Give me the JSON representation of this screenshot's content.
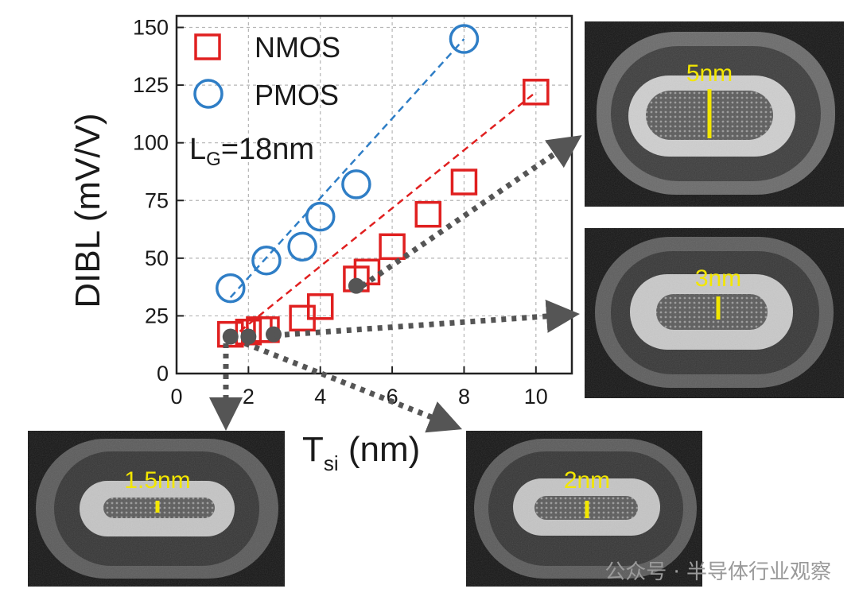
{
  "chart_data": {
    "type": "scatter",
    "xlabel_main": "T",
    "xlabel_sub": "si",
    "xlabel_unit": " (nm)",
    "ylabel": "DIBL (mV/V)",
    "xlim": [
      0,
      11
    ],
    "ylim": [
      0,
      155
    ],
    "xticks": [
      0,
      2,
      4,
      6,
      8,
      10
    ],
    "yticks": [
      0,
      25,
      50,
      75,
      100,
      125,
      150
    ],
    "grid": true,
    "legend_position": "top-left",
    "annotation_main": "L",
    "annotation_sub": "G",
    "annotation_rest": "=18nm",
    "series": [
      {
        "name": "NMOS",
        "marker": "square",
        "color": "#e02020",
        "x": [
          1.5,
          2.0,
          2.3,
          2.5,
          3.5,
          4.0,
          5.0,
          5.3,
          6.0,
          7.0,
          8.0,
          10.0
        ],
        "y": [
          17,
          18,
          19,
          19,
          24,
          29,
          41,
          44,
          55,
          69,
          83,
          122
        ]
      },
      {
        "name": "PMOS",
        "marker": "circle",
        "color": "#2f7ec6",
        "x": [
          1.5,
          2.5,
          3.5,
          4.0,
          5.0,
          8.0
        ],
        "y": [
          37,
          49,
          55,
          68,
          82,
          145
        ]
      }
    ],
    "fits": [
      {
        "color": "#e02020",
        "x": [
          1.5,
          10.0
        ],
        "y": [
          15,
          122
        ]
      },
      {
        "color": "#2f7ec6",
        "x": [
          1.5,
          8.0
        ],
        "y": [
          33,
          145
        ]
      }
    ],
    "highlight_points": {
      "color": "#555555",
      "x": [
        1.5,
        2.0,
        2.7,
        5.0
      ],
      "y": [
        16,
        16,
        17,
        38
      ]
    }
  },
  "tem_images": [
    {
      "label": "5nm"
    },
    {
      "label": "3nm"
    },
    {
      "label": "1.5nm"
    },
    {
      "label": "2nm"
    }
  ],
  "watermark": "公众号 · 半导体行业观察"
}
